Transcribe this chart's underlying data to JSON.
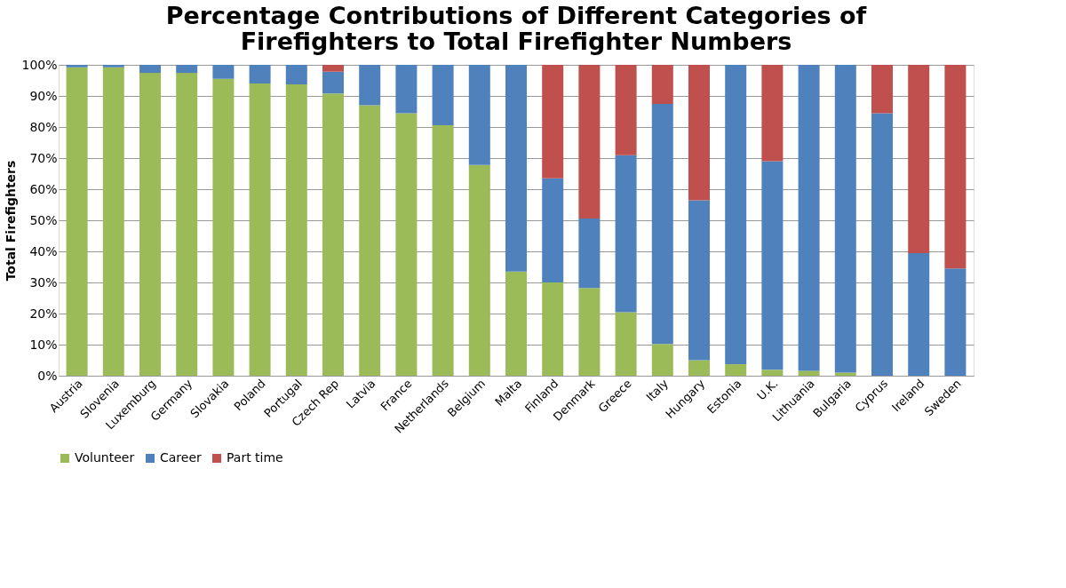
{
  "chart_data": {
    "type": "bar",
    "title": [
      "Percentage Contributions of Different Categories of",
      "Firefighters to Total Firefighter Numbers"
    ],
    "ylabel": "Total Firefighters",
    "stacked": true,
    "grid": "y",
    "legend": "bottom",
    "categories": [
      "Austria",
      "Slovenia",
      "Luxemburg",
      "Germany",
      "Slovakia",
      "Poland",
      "Portugal",
      "Czech Rep",
      "Latvia",
      "France",
      "Netherlands",
      "Belgium",
      "Malta",
      "Finland",
      "Denmark",
      "Greece",
      "Italy",
      "Hungary",
      "Estonia",
      "U.K.",
      "Lithuania",
      "Bulgaria",
      "Cyprus",
      "Ireland",
      "Sweden"
    ],
    "series": [
      {
        "name": "Volunteer",
        "color": "#9bbb59",
        "values": [
          99.2,
          99.2,
          97.4,
          97.4,
          95.5,
          94,
          93.7,
          90.8,
          87,
          84.4,
          80.6,
          67.8,
          33.5,
          30,
          28.2,
          20.4,
          10.2,
          5,
          3.7,
          1.9,
          1.6,
          1,
          0,
          0,
          0
        ]
      },
      {
        "name": "Career",
        "color": "#4f81bd",
        "values": [
          0.8,
          0.8,
          2.6,
          2.6,
          4.5,
          6,
          6.3,
          7,
          13,
          15.6,
          19.4,
          32.2,
          66.5,
          33.5,
          22.4,
          50.5,
          77.2,
          51.4,
          96.3,
          67.1,
          98.4,
          99,
          84.4,
          39.4,
          34.5
        ]
      },
      {
        "name": "Part time",
        "color": "#c0504d",
        "values": [
          0,
          0,
          0,
          0,
          0,
          0,
          0,
          2.2,
          0,
          0,
          0,
          0,
          0,
          36.5,
          49.4,
          29.1,
          12.6,
          43.6,
          0,
          31,
          0,
          0,
          15.6,
          60.6,
          65.5
        ]
      }
    ],
    "ylim": [
      0,
      100
    ],
    "yticks": [
      {
        "value": 0,
        "label": "0%"
      },
      {
        "value": 10,
        "label": "10%"
      },
      {
        "value": 20,
        "label": "20%"
      },
      {
        "value": 30,
        "label": "30%"
      },
      {
        "value": 40,
        "label": "40%"
      },
      {
        "value": 50,
        "label": "50%"
      },
      {
        "value": 60,
        "label": "60%"
      },
      {
        "value": 70,
        "label": "70%"
      },
      {
        "value": 80,
        "label": "80%"
      },
      {
        "value": 90,
        "label": "90%"
      },
      {
        "value": 100,
        "label": "100%"
      }
    ]
  }
}
